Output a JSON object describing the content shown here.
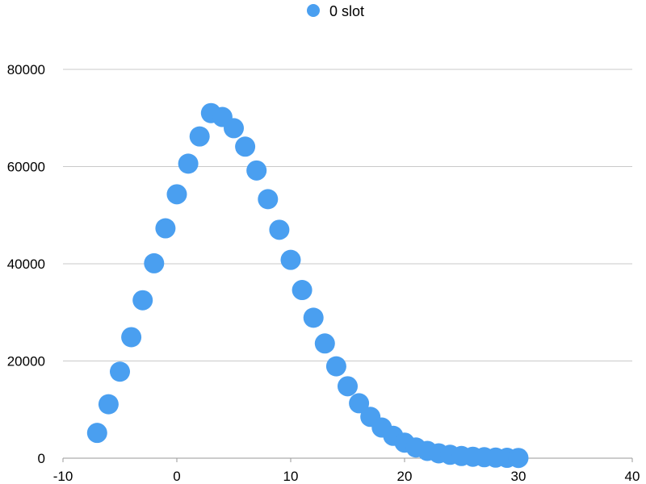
{
  "chart_data": {
    "type": "scatter",
    "title": "",
    "xlabel": "",
    "ylabel": "",
    "xlim": [
      -10,
      40
    ],
    "ylim": [
      0,
      80000
    ],
    "x_ticks": [
      "-10",
      "0",
      "10",
      "20",
      "30",
      "40"
    ],
    "y_ticks": [
      "0",
      "20000",
      "40000",
      "60000",
      "80000"
    ],
    "grid": "horizontal",
    "legend": "top-center",
    "series": [
      {
        "name": "0 slot",
        "color": "#4a9ff0",
        "points": [
          {
            "x": -7,
            "y": 5200
          },
          {
            "x": -6,
            "y": 11100
          },
          {
            "x": -5,
            "y": 17800
          },
          {
            "x": -4,
            "y": 24900
          },
          {
            "x": -3,
            "y": 32500
          },
          {
            "x": -2,
            "y": 40100
          },
          {
            "x": -1,
            "y": 47300
          },
          {
            "x": 0,
            "y": 54300
          },
          {
            "x": 1,
            "y": 60600
          },
          {
            "x": 2,
            "y": 66200
          },
          {
            "x": 3,
            "y": 71000
          },
          {
            "x": 4,
            "y": 70200
          },
          {
            "x": 5,
            "y": 67900
          },
          {
            "x": 6,
            "y": 64100
          },
          {
            "x": 7,
            "y": 59200
          },
          {
            "x": 8,
            "y": 53300
          },
          {
            "x": 9,
            "y": 47000
          },
          {
            "x": 10,
            "y": 40800
          },
          {
            "x": 11,
            "y": 34600
          },
          {
            "x": 12,
            "y": 28900
          },
          {
            "x": 13,
            "y": 23600
          },
          {
            "x": 14,
            "y": 18900
          },
          {
            "x": 15,
            "y": 14800
          },
          {
            "x": 16,
            "y": 11300
          },
          {
            "x": 17,
            "y": 8500
          },
          {
            "x": 18,
            "y": 6300
          },
          {
            "x": 19,
            "y": 4600
          },
          {
            "x": 20,
            "y": 3200
          },
          {
            "x": 21,
            "y": 2200
          },
          {
            "x": 22,
            "y": 1500
          },
          {
            "x": 23,
            "y": 1000
          },
          {
            "x": 24,
            "y": 700
          },
          {
            "x": 25,
            "y": 450
          },
          {
            "x": 26,
            "y": 300
          },
          {
            "x": 27,
            "y": 200
          },
          {
            "x": 28,
            "y": 120
          },
          {
            "x": 29,
            "y": 80
          },
          {
            "x": 30,
            "y": 50
          }
        ]
      }
    ]
  }
}
